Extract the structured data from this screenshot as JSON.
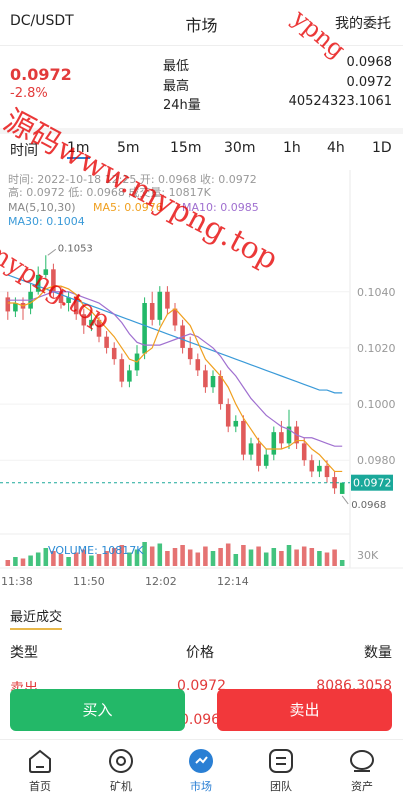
{
  "header": {
    "pair": "DC/USDT",
    "title": "市场",
    "my_orders": "我的委托"
  },
  "ticker": {
    "last_price": "0.0972",
    "change": "-2.8%",
    "stats": [
      {
        "label": "最低",
        "value": "0.0968"
      },
      {
        "label": "最高",
        "value": "0.0972"
      },
      {
        "label": "24h量",
        "value": "40524323.1061"
      }
    ]
  },
  "intervals": {
    "items": [
      "时间",
      "1m",
      "5m",
      "15m",
      "30m",
      "1h",
      "4h",
      "1D"
    ],
    "active": "1m"
  },
  "chart_info": {
    "line1": "时间: 2022-10-18 12:25   开: 0.0968   收: 0.0972",
    "line2": "高: 0.0972   低: 0.0968   成交量: 10817K",
    "ma_label": "MA(5,10,30)",
    "ma5": "MA5: 0.0976",
    "ma10": "MA10: 0.0985",
    "ma30": "MA30: 0.1004",
    "volume_label": "VOLUME: 10817K"
  },
  "chart_data": {
    "type": "candlestick",
    "y_ticks": [
      "0.1040",
      "0.1020",
      "0.1000",
      "0.0980"
    ],
    "ylim": [
      0.0958,
      0.1062
    ],
    "x_ticks": [
      "11:38",
      "11:50",
      "12:02",
      "12:14"
    ],
    "high_marker": "0.1053",
    "low_marker": "0.0968",
    "current_price": "0.0972",
    "volume_axis_label": "30K",
    "colors": {
      "up": "#23b868",
      "down": "#e05a5a",
      "ma5": "#f0a020",
      "ma10": "#a070d0",
      "ma30": "#3a9ad8",
      "current": "#1aa89a"
    },
    "candles": [
      {
        "o": 0.1038,
        "c": 0.1033,
        "h": 0.104,
        "l": 0.103
      },
      {
        "o": 0.1033,
        "c": 0.1036,
        "h": 0.1038,
        "l": 0.1031
      },
      {
        "o": 0.1036,
        "c": 0.1034,
        "h": 0.1038,
        "l": 0.103
      },
      {
        "o": 0.1034,
        "c": 0.104,
        "h": 0.1043,
        "l": 0.1032
      },
      {
        "o": 0.104,
        "c": 0.1046,
        "h": 0.1049,
        "l": 0.1039
      },
      {
        "o": 0.1046,
        "c": 0.1048,
        "h": 0.1053,
        "l": 0.1045
      },
      {
        "o": 0.1048,
        "c": 0.104,
        "h": 0.105,
        "l": 0.1038
      },
      {
        "o": 0.104,
        "c": 0.1036,
        "h": 0.1042,
        "l": 0.1034
      },
      {
        "o": 0.1036,
        "c": 0.1038,
        "h": 0.104,
        "l": 0.1033
      },
      {
        "o": 0.1038,
        "c": 0.1032,
        "h": 0.1039,
        "l": 0.103
      },
      {
        "o": 0.1032,
        "c": 0.1028,
        "h": 0.1034,
        "l": 0.1025
      },
      {
        "o": 0.1028,
        "c": 0.103,
        "h": 0.1032,
        "l": 0.1026
      },
      {
        "o": 0.103,
        "c": 0.1024,
        "h": 0.1031,
        "l": 0.1022
      },
      {
        "o": 0.1024,
        "c": 0.102,
        "h": 0.1026,
        "l": 0.1018
      },
      {
        "o": 0.102,
        "c": 0.1016,
        "h": 0.1022,
        "l": 0.1014
      },
      {
        "o": 0.1016,
        "c": 0.1008,
        "h": 0.1018,
        "l": 0.1006
      },
      {
        "o": 0.1008,
        "c": 0.1012,
        "h": 0.1014,
        "l": 0.1006
      },
      {
        "o": 0.1012,
        "c": 0.1018,
        "h": 0.1021,
        "l": 0.101
      },
      {
        "o": 0.1018,
        "c": 0.1036,
        "h": 0.1038,
        "l": 0.1016
      },
      {
        "o": 0.1036,
        "c": 0.103,
        "h": 0.104,
        "l": 0.1028
      },
      {
        "o": 0.103,
        "c": 0.104,
        "h": 0.1042,
        "l": 0.1028
      },
      {
        "o": 0.104,
        "c": 0.1034,
        "h": 0.1042,
        "l": 0.1032
      },
      {
        "o": 0.1034,
        "c": 0.1028,
        "h": 0.1036,
        "l": 0.1026
      },
      {
        "o": 0.1028,
        "c": 0.102,
        "h": 0.103,
        "l": 0.1018
      },
      {
        "o": 0.102,
        "c": 0.1016,
        "h": 0.1024,
        "l": 0.1014
      },
      {
        "o": 0.1016,
        "c": 0.1012,
        "h": 0.1018,
        "l": 0.101
      },
      {
        "o": 0.1012,
        "c": 0.1006,
        "h": 0.1014,
        "l": 0.1004
      },
      {
        "o": 0.1006,
        "c": 0.101,
        "h": 0.1012,
        "l": 0.1004
      },
      {
        "o": 0.101,
        "c": 0.1,
        "h": 0.1012,
        "l": 0.0998
      },
      {
        "o": 0.1,
        "c": 0.0992,
        "h": 0.1002,
        "l": 0.099
      },
      {
        "o": 0.0992,
        "c": 0.0994,
        "h": 0.0996,
        "l": 0.099
      },
      {
        "o": 0.0994,
        "c": 0.0982,
        "h": 0.0996,
        "l": 0.098
      },
      {
        "o": 0.0982,
        "c": 0.0986,
        "h": 0.0988,
        "l": 0.098
      },
      {
        "o": 0.0986,
        "c": 0.0978,
        "h": 0.0988,
        "l": 0.0976
      },
      {
        "o": 0.0978,
        "c": 0.0982,
        "h": 0.0984,
        "l": 0.0977
      },
      {
        "o": 0.0982,
        "c": 0.099,
        "h": 0.0992,
        "l": 0.098
      },
      {
        "o": 0.099,
        "c": 0.0986,
        "h": 0.0994,
        "l": 0.0984
      },
      {
        "o": 0.0986,
        "c": 0.0992,
        "h": 0.0998,
        "l": 0.0984
      },
      {
        "o": 0.0992,
        "c": 0.0986,
        "h": 0.0994,
        "l": 0.0984
      },
      {
        "o": 0.0986,
        "c": 0.098,
        "h": 0.0988,
        "l": 0.0978
      },
      {
        "o": 0.098,
        "c": 0.0976,
        "h": 0.0982,
        "l": 0.0974
      },
      {
        "o": 0.0976,
        "c": 0.0978,
        "h": 0.098,
        "l": 0.0974
      },
      {
        "o": 0.0978,
        "c": 0.0974,
        "h": 0.098,
        "l": 0.0972
      },
      {
        "o": 0.0974,
        "c": 0.097,
        "h": 0.0976,
        "l": 0.0968
      },
      {
        "o": 0.0968,
        "c": 0.0972,
        "h": 0.0972,
        "l": 0.0968
      }
    ],
    "volumes": [
      4,
      6,
      5,
      7,
      9,
      12,
      10,
      8,
      6,
      9,
      11,
      7,
      8,
      10,
      12,
      14,
      9,
      11,
      16,
      13,
      15,
      10,
      12,
      14,
      11,
      9,
      13,
      10,
      12,
      15,
      8,
      14,
      11,
      13,
      9,
      12,
      10,
      14,
      11,
      13,
      12,
      10,
      9,
      11,
      4
    ],
    "ma5": [
      0.1036,
      0.1036,
      0.1035,
      0.1036,
      0.1038,
      0.1041,
      0.1042,
      0.1042,
      0.1041,
      0.1039,
      0.1035,
      0.1033,
      0.103,
      0.1027,
      0.1024,
      0.102,
      0.1016,
      0.1015,
      0.1018,
      0.102,
      0.1027,
      0.1032,
      0.1034,
      0.1031,
      0.1028,
      0.1022,
      0.1016,
      0.1013,
      0.101,
      0.1006,
      0.1,
      0.0995,
      0.0991,
      0.0987,
      0.0984,
      0.0984,
      0.0984,
      0.0985,
      0.0987,
      0.0987,
      0.0984,
      0.0982,
      0.0979,
      0.0976,
      0.0976
    ],
    "ma10": [
      0.1037,
      0.1037,
      0.1037,
      0.1037,
      0.1038,
      0.1039,
      0.104,
      0.104,
      0.104,
      0.1039,
      0.1038,
      0.1037,
      0.1036,
      0.1034,
      0.1032,
      0.1029,
      0.1025,
      0.1022,
      0.1021,
      0.1021,
      0.1021,
      0.1022,
      0.1023,
      0.1024,
      0.1025,
      0.1024,
      0.1022,
      0.102,
      0.1017,
      0.1013,
      0.101,
      0.1006,
      0.1002,
      0.0999,
      0.0996,
      0.0994,
      0.0992,
      0.0991,
      0.0989,
      0.0988,
      0.0988,
      0.0987,
      0.0986,
      0.0985,
      0.0985
    ],
    "ma30": [
      0.1046,
      0.1045,
      0.1044,
      0.1043,
      0.1042,
      0.1041,
      0.104,
      0.1039,
      0.1038,
      0.1037,
      0.1036,
      0.1035,
      0.1034,
      0.1033,
      0.1032,
      0.1031,
      0.103,
      0.1029,
      0.1028,
      0.1027,
      0.1026,
      0.1025,
      0.1024,
      0.1023,
      0.1022,
      0.1021,
      0.102,
      0.1019,
      0.1018,
      0.1017,
      0.1016,
      0.1015,
      0.1014,
      0.1013,
      0.1012,
      0.1011,
      0.101,
      0.1009,
      0.1008,
      0.1007,
      0.1006,
      0.1005,
      0.1005,
      0.1004,
      0.1004
    ]
  },
  "recent_trades": {
    "title": "最近成交",
    "headers": {
      "type": "类型",
      "price": "价格",
      "amount": "数量"
    },
    "rows": [
      {
        "type": "卖出",
        "price": "0.0972",
        "amount": "8086.3058"
      }
    ],
    "next_price_partial": "0.096"
  },
  "actions": {
    "buy": "买入",
    "sell": "卖出"
  },
  "tabbar": {
    "items": [
      {
        "label": "首页",
        "icon": "home-icon"
      },
      {
        "label": "矿机",
        "icon": "miner-icon"
      },
      {
        "label": "市场",
        "icon": "market-icon"
      },
      {
        "label": "团队",
        "icon": "team-icon"
      },
      {
        "label": "资产",
        "icon": "assets-icon"
      }
    ],
    "active": "市场"
  },
  "watermark": {
    "text1": "源码www.mypng.top",
    "text2": "mypng.top",
    "text3": "ypng"
  }
}
